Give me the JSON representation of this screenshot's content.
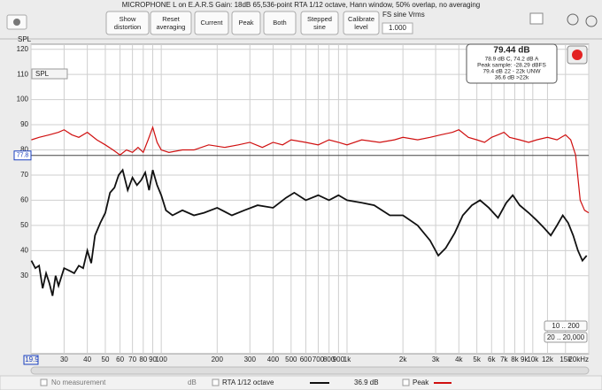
{
  "window": {
    "title": "MICROPHONE L on E.A.R.S Gain: 18dB   65,536-point RTA 1/12 octave, Hann window, 50% overlap, no averaging"
  },
  "toolbar": {
    "buttons": [
      "Show distortion",
      "Reset averaging",
      "Current",
      "Peak",
      "Both",
      "Stepped sine",
      "Calibrate level"
    ],
    "fs_label": "FS sine Vrms",
    "fs_value": "1.000",
    "unit_select": "SPL"
  },
  "chart_data": {
    "type": "line",
    "y_label": "SPL",
    "log_x": true,
    "grid": true,
    "xlim": [
      19.9,
      20000
    ],
    "ylim": [
      -1,
      122
    ],
    "yticks": [
      30,
      40,
      50,
      60,
      70,
      80,
      90,
      100,
      110,
      120
    ],
    "xticks": [
      19.9,
      30,
      40,
      50,
      60,
      70,
      80,
      90,
      100,
      200,
      300,
      400,
      500,
      600,
      700,
      800,
      900,
      {
        "value": 1000,
        "label": "1k"
      },
      {
        "value": 2000,
        "label": "2k"
      },
      {
        "value": 3000,
        "label": "3k"
      },
      {
        "value": 4000,
        "label": "4k"
      },
      {
        "value": 5000,
        "label": "5k"
      },
      {
        "value": 6000,
        "label": "6k"
      },
      {
        "value": 7000,
        "label": "7k"
      },
      {
        "value": 8000,
        "label": "8k"
      },
      {
        "value": 9000,
        "label": "9k"
      },
      {
        "value": 10000,
        "label": "10k"
      },
      {
        "value": 12000,
        "label": "12k"
      },
      {
        "value": 15000,
        "label": "15k"
      },
      {
        "value": 20000,
        "label": "20kHz"
      }
    ],
    "marker_level": 77.8,
    "series": [
      {
        "name": "Peak",
        "color": "#d01010",
        "x": [
          20,
          22,
          25,
          28,
          30,
          33,
          36,
          40,
          45,
          50,
          55,
          60,
          65,
          70,
          75,
          80,
          85,
          90,
          95,
          100,
          110,
          130,
          150,
          180,
          220,
          260,
          300,
          350,
          400,
          450,
          500,
          600,
          700,
          800,
          900,
          1000,
          1200,
          1500,
          1800,
          2000,
          2400,
          2800,
          3200,
          3700,
          4000,
          4500,
          5000,
          5500,
          6000,
          6500,
          7000,
          7500,
          8500,
          9500,
          10500,
          12000,
          13500,
          15000,
          16000,
          17000,
          18000,
          19000,
          20000
        ],
        "values": [
          84,
          85,
          86,
          87,
          88,
          86,
          85,
          87,
          84,
          82,
          80,
          78,
          80,
          79,
          81,
          79,
          84,
          89,
          83,
          80,
          79,
          80,
          80,
          82,
          81,
          82,
          83,
          81,
          83,
          82,
          84,
          83,
          82,
          84,
          83,
          82,
          84,
          83,
          84,
          85,
          84,
          85,
          86,
          87,
          88,
          85,
          84,
          83,
          85,
          86,
          87,
          85,
          84,
          83,
          84,
          85,
          84,
          86,
          84,
          78,
          60,
          56,
          55
        ]
      },
      {
        "name": "RTA 1/12 octave",
        "color": "#111111",
        "x": [
          20,
          21,
          22,
          23,
          24,
          25,
          26,
          27,
          28,
          30,
          32,
          34,
          36,
          38,
          40,
          42,
          44,
          47,
          50,
          53,
          56,
          59,
          62,
          66,
          70,
          74,
          78,
          82,
          86,
          90,
          95,
          100,
          106,
          115,
          130,
          150,
          170,
          200,
          240,
          280,
          330,
          400,
          470,
          520,
          600,
          700,
          800,
          900,
          1000,
          1200,
          1400,
          1700,
          2000,
          2400,
          2800,
          3100,
          3400,
          3800,
          4200,
          4700,
          5200,
          5800,
          6500,
          7200,
          7800,
          8500,
          9500,
          10500,
          11500,
          12500,
          13500,
          14500,
          15500,
          16500,
          17500,
          18500,
          19500
        ],
        "values": [
          36,
          33,
          34,
          25,
          31,
          27,
          22,
          30,
          26,
          33,
          32,
          31,
          34,
          33,
          40,
          35,
          46,
          51,
          55,
          63,
          65,
          70,
          72,
          64,
          69,
          66,
          68,
          71,
          64,
          72,
          66,
          62,
          56,
          54,
          56,
          54,
          55,
          57,
          54,
          56,
          58,
          57,
          61,
          63,
          60,
          62,
          60,
          62,
          60,
          59,
          58,
          54,
          54,
          50,
          44,
          38,
          41,
          47,
          54,
          58,
          60,
          57,
          53,
          59,
          62,
          58,
          55,
          52,
          49,
          46,
          50,
          54,
          51,
          46,
          40,
          36,
          38
        ]
      }
    ]
  },
  "info_box": {
    "level": "79.44 dB",
    "weighted": "78.9 dB C, 74.2 dB A",
    "peak_sample": "Peak sample: -28.29 dBFS",
    "unweighted": "79.4 dB 22 - 22k UNW",
    "above": "36.6 dB >22k"
  },
  "zoom_buttons": [
    "10 .. 200",
    "20 .. 20,000"
  ],
  "legend_bar": {
    "no_measurement": "No measurement",
    "unit": "dB",
    "rta_level": "36.9 dB"
  }
}
